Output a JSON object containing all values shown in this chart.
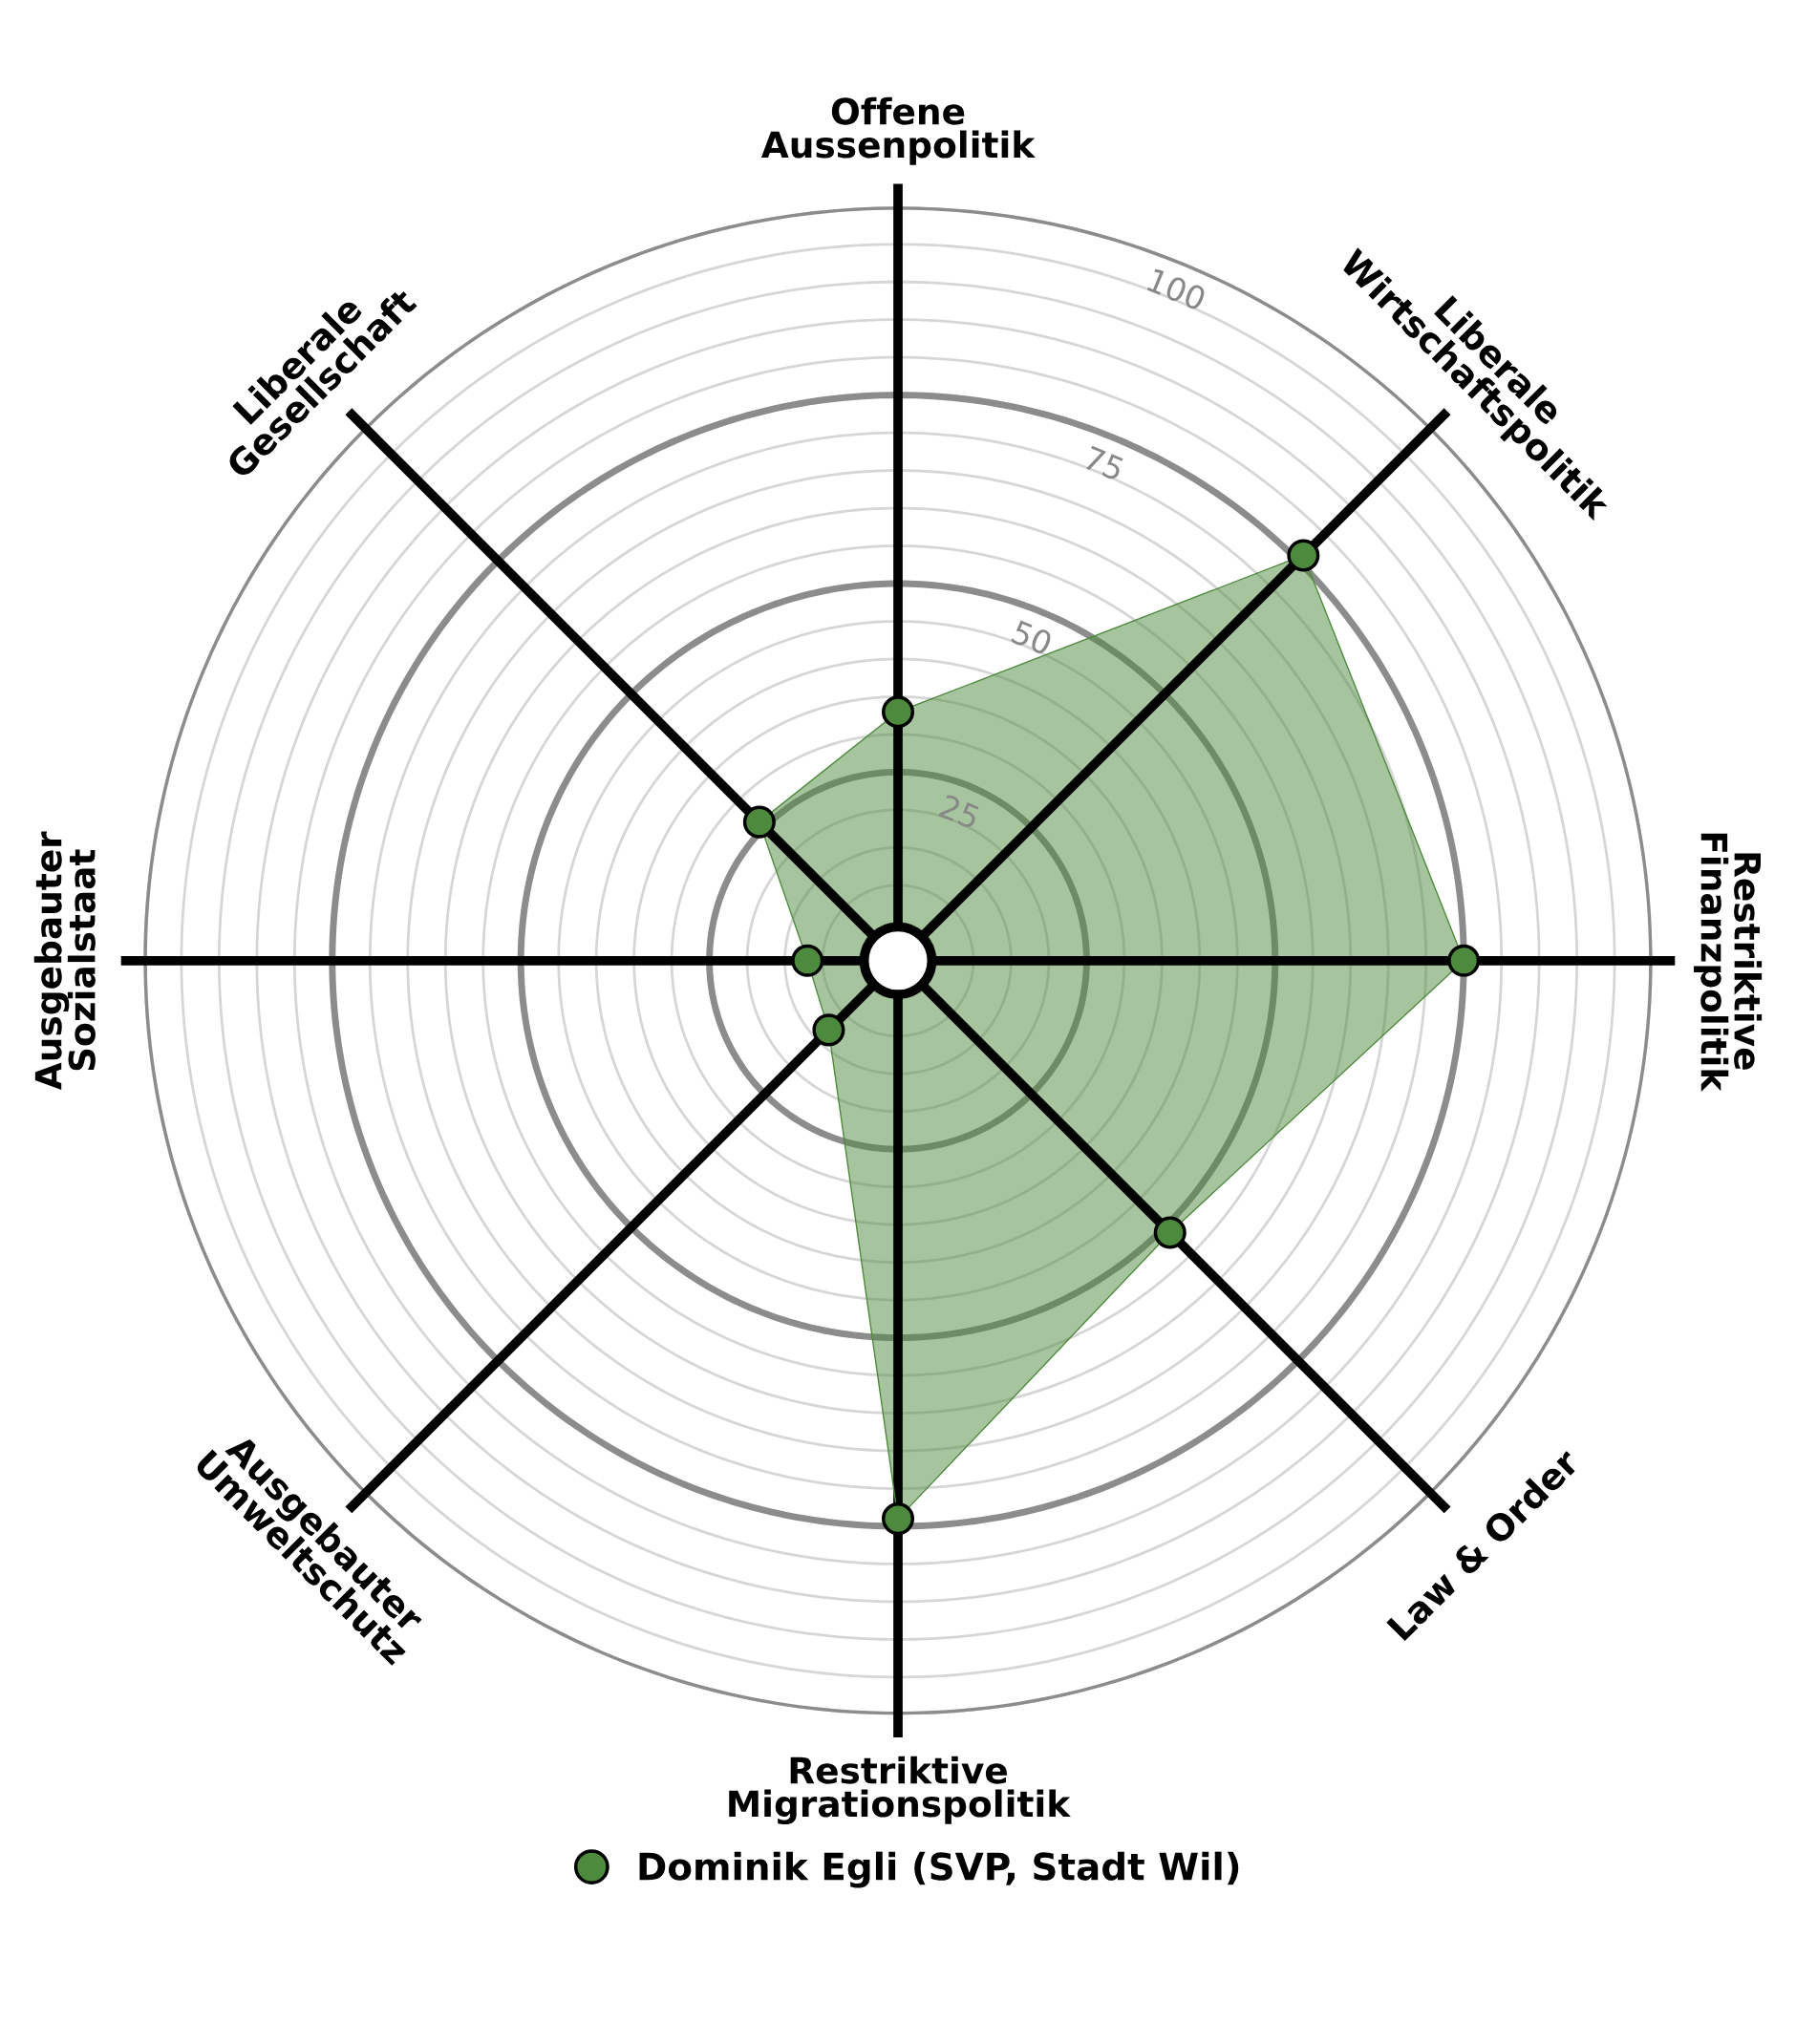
{
  "chart_data": {
    "type": "radar",
    "categories": [
      "Offene\nAussenpolitik",
      "Liberale\nWirtschaftspolitik",
      "Restriktive\nFinanzpolitik",
      "Law & Order",
      "Restriktive\nMigrationspolitik",
      "Ausgebauter\nUmweltschutz",
      "Ausgebauter\nSozialstaat",
      "Liberale\nGesellschaft"
    ],
    "series": [
      {
        "name": "Dominik Egli (SVP, Stadt Wil)",
        "color": "#4e8a3e",
        "values": [
          33,
          76,
          75,
          51,
          74,
          13,
          12,
          26
        ]
      }
    ],
    "ylim": [
      0,
      100
    ],
    "yticks": [
      25,
      50,
      75,
      100
    ],
    "grid": true,
    "legend": "bottom",
    "marker": "circle"
  }
}
